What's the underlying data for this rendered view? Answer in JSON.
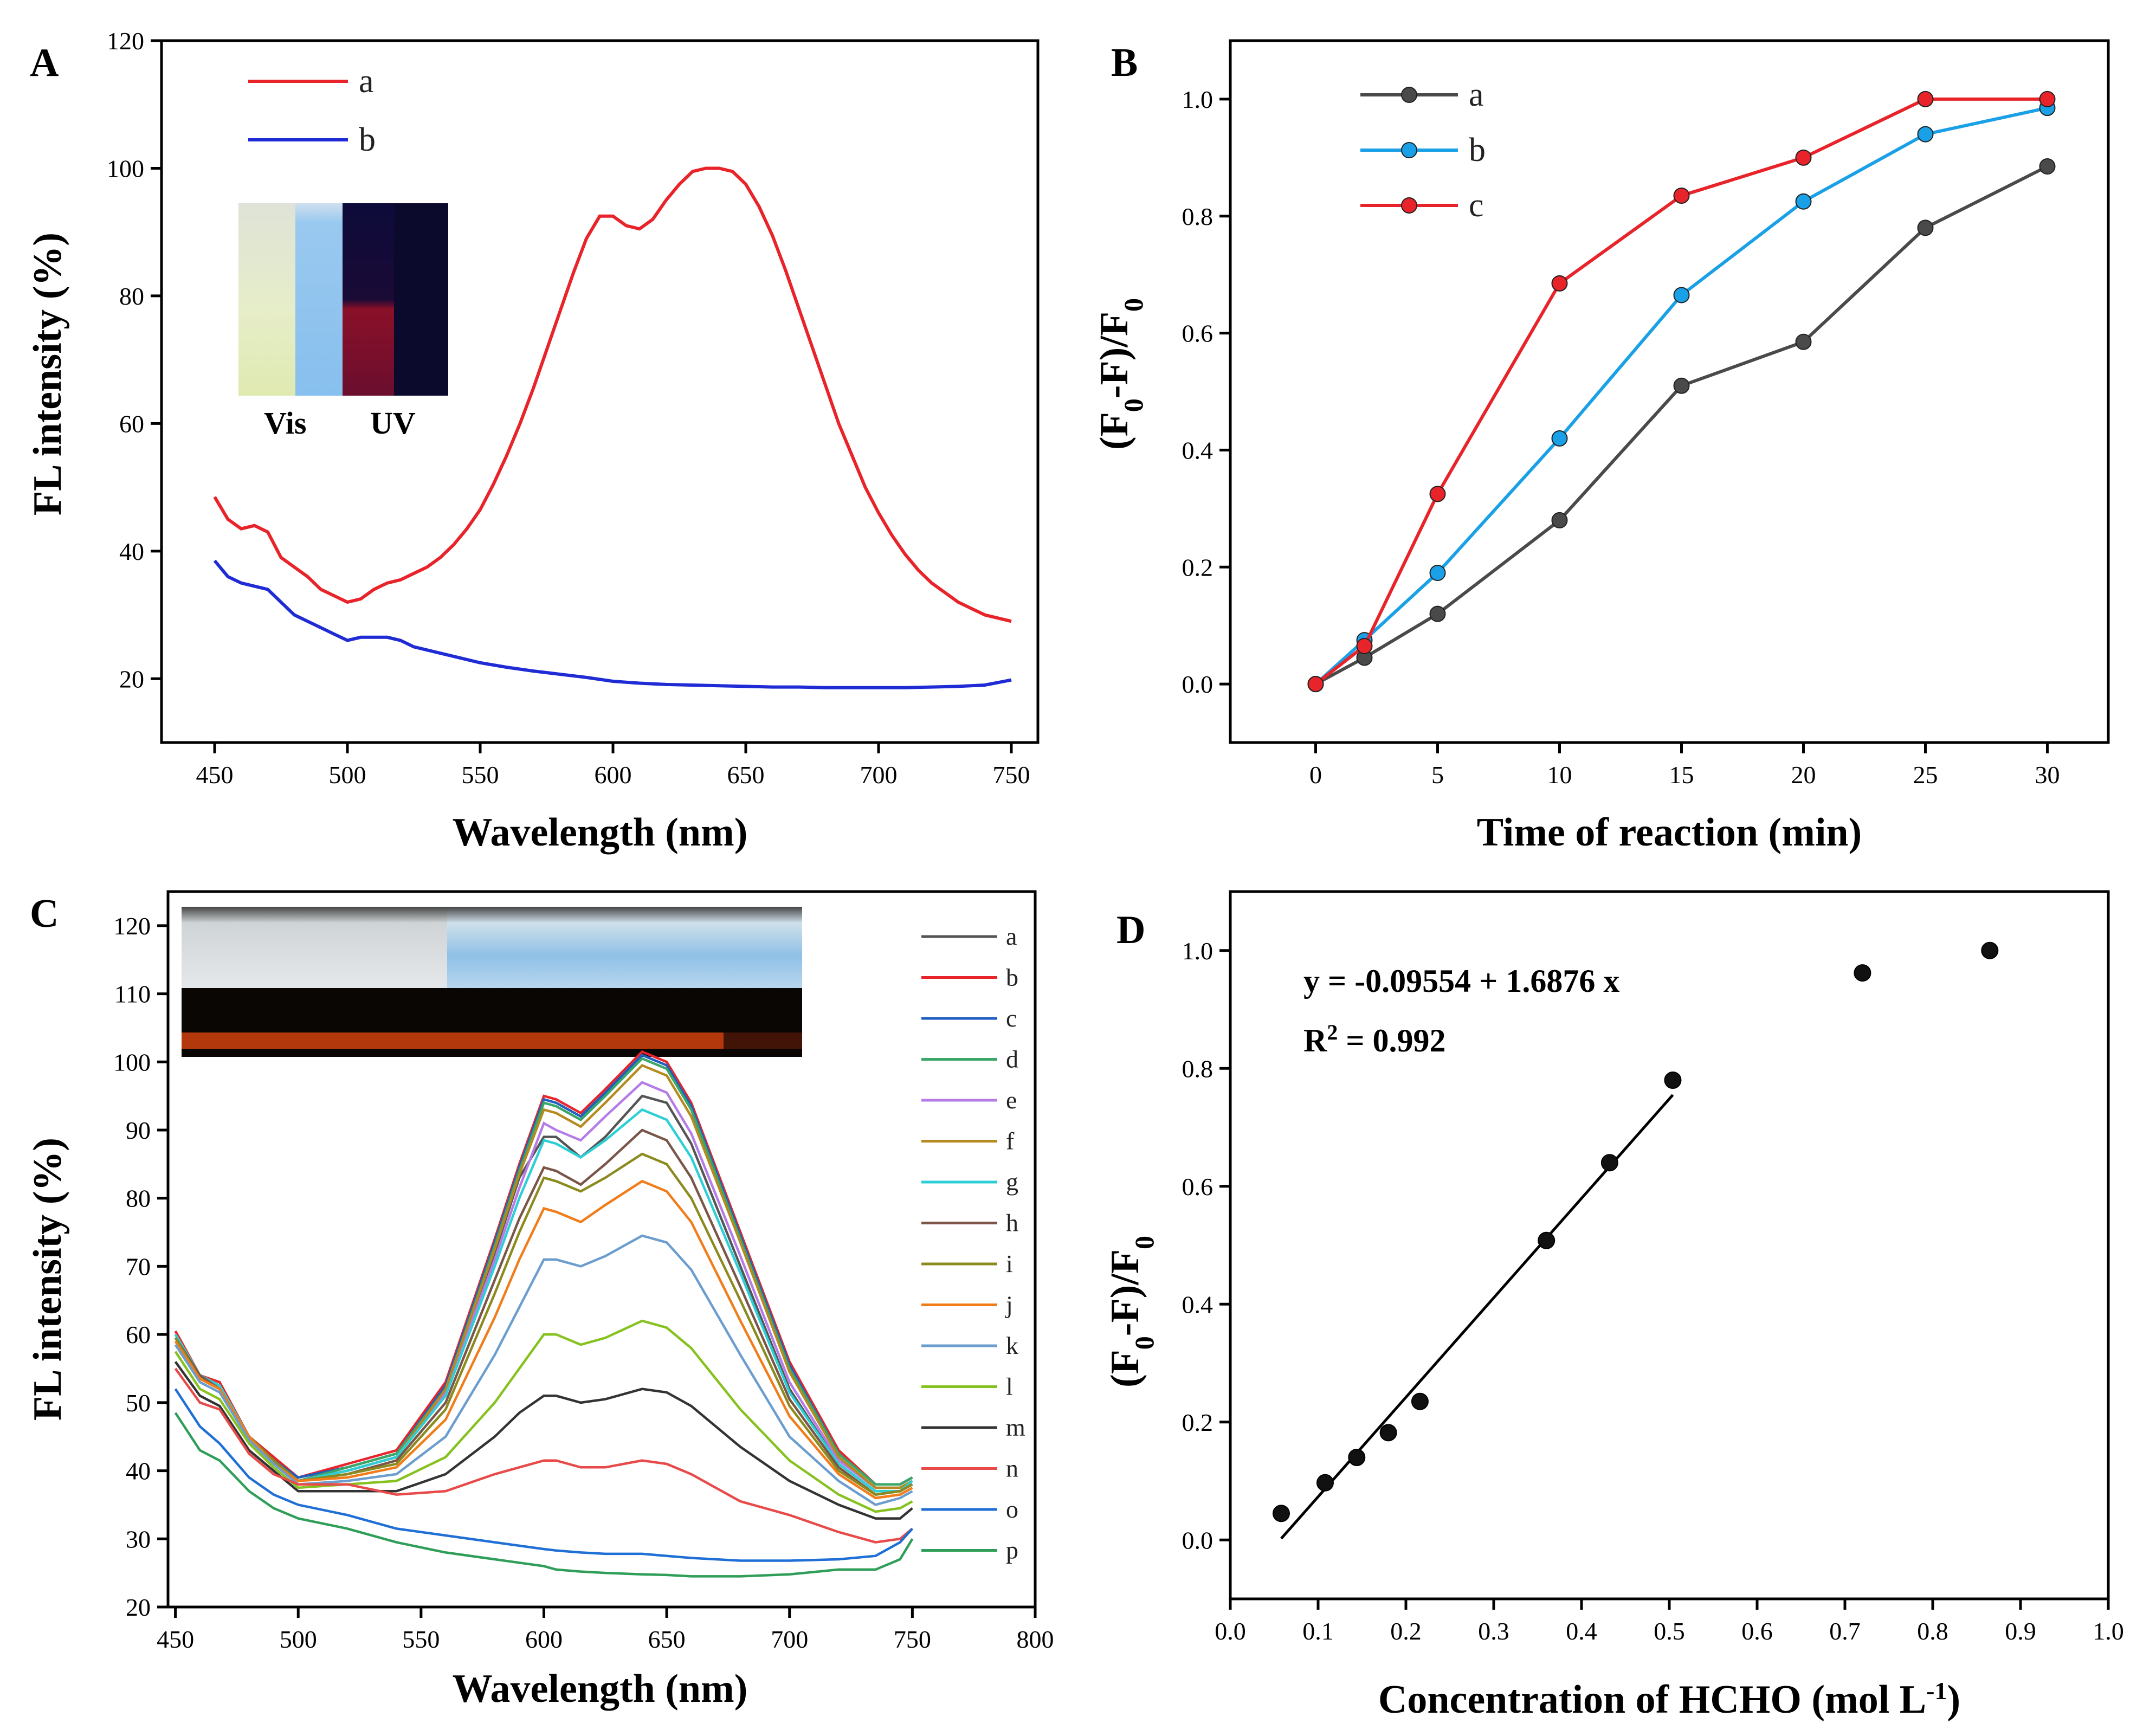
{
  "panels": {
    "A": {
      "letter": "A"
    },
    "B": {
      "letter": "B"
    },
    "C": {
      "letter": "C"
    },
    "D": {
      "letter": "D"
    }
  },
  "inset_A": {
    "vis_label": "Vis",
    "uv_label": "UV"
  },
  "annotation_D": {
    "equation": "y = -0.09554 + 1.6876 x",
    "r2_prefix": "R",
    "r2_sup": "2",
    "r2_value": " = 0.992"
  },
  "chart_data": [
    {
      "id": "A",
      "type": "line",
      "xlabel": "Wavelength (nm)",
      "ylabel": "FL intensity (%)",
      "xlim": [
        430,
        760
      ],
      "ylim": [
        10,
        120
      ],
      "xticks": [
        450,
        500,
        550,
        600,
        650,
        700,
        750
      ],
      "yticks": [
        20,
        40,
        60,
        80,
        100,
        120
      ],
      "legend_position": "top-left",
      "series": [
        {
          "name": "a",
          "color": "#e8242a",
          "x": [
            450,
            455,
            460,
            465,
            470,
            475,
            480,
            485,
            490,
            495,
            500,
            505,
            510,
            515,
            520,
            525,
            530,
            535,
            540,
            545,
            550,
            555,
            560,
            565,
            570,
            575,
            580,
            585,
            590,
            595,
            600,
            605,
            610,
            615,
            620,
            625,
            630,
            635,
            640,
            645,
            650,
            655,
            660,
            665,
            670,
            675,
            680,
            685,
            690,
            695,
            700,
            705,
            710,
            715,
            720,
            725,
            730,
            735,
            740,
            745,
            750
          ],
          "y": [
            48.5,
            45,
            43.5,
            44,
            43,
            39,
            37.5,
            36,
            34,
            33,
            32,
            32.5,
            34,
            35,
            35.5,
            36.5,
            37.5,
            39,
            41,
            43.5,
            46.5,
            50.5,
            55,
            60,
            65.5,
            71.5,
            77.5,
            83.5,
            89,
            92.5,
            92.5,
            91,
            90.5,
            92,
            95,
            97.5,
            99.5,
            100,
            100,
            99.5,
            97.5,
            94,
            89.5,
            84,
            78,
            72,
            66,
            60,
            55,
            50,
            46,
            42.5,
            39.5,
            37,
            35,
            33.5,
            32,
            31,
            30,
            29.5,
            29
          ]
        },
        {
          "name": "b",
          "color": "#1f2bd4",
          "x": [
            450,
            455,
            460,
            465,
            470,
            475,
            480,
            485,
            490,
            495,
            500,
            505,
            510,
            515,
            520,
            525,
            530,
            540,
            550,
            560,
            570,
            580,
            590,
            600,
            610,
            620,
            630,
            640,
            650,
            660,
            670,
            680,
            690,
            700,
            710,
            720,
            730,
            740,
            750
          ],
          "y": [
            38.5,
            36,
            35,
            34.5,
            34,
            32,
            30,
            29,
            28,
            27,
            26,
            26.5,
            26.5,
            26.5,
            26,
            25,
            24.5,
            23.5,
            22.5,
            21.8,
            21.2,
            20.7,
            20.2,
            19.6,
            19.3,
            19.1,
            19,
            18.9,
            18.8,
            18.7,
            18.7,
            18.6,
            18.6,
            18.6,
            18.6,
            18.7,
            18.8,
            19,
            19.8
          ]
        }
      ]
    },
    {
      "id": "B",
      "type": "line",
      "xlabel": "Time of reaction (min)",
      "ylabel": "(F0-F)/F0",
      "xlim": [
        -3.5,
        32.5
      ],
      "ylim": [
        -0.1,
        1.1
      ],
      "xticks": [
        0,
        5,
        10,
        15,
        20,
        25,
        30
      ],
      "yticks": [
        0.0,
        0.2,
        0.4,
        0.6,
        0.8,
        1.0
      ],
      "legend_position": "top-left",
      "series": [
        {
          "name": "a",
          "color": "#4a4a4a",
          "x": [
            0,
            2,
            5,
            10,
            15,
            20,
            25,
            30
          ],
          "y": [
            0,
            0.045,
            0.12,
            0.28,
            0.51,
            0.585,
            0.78,
            0.885
          ]
        },
        {
          "name": "b",
          "color": "#1aa0e6",
          "x": [
            0,
            2,
            5,
            10,
            15,
            20,
            25,
            30
          ],
          "y": [
            0,
            0.075,
            0.19,
            0.42,
            0.665,
            0.825,
            0.94,
            0.985
          ]
        },
        {
          "name": "c",
          "color": "#e8242a",
          "x": [
            0,
            2,
            5,
            10,
            15,
            20,
            25,
            30
          ],
          "y": [
            0,
            0.065,
            0.325,
            0.685,
            0.835,
            0.9,
            1.0,
            1.0
          ]
        }
      ]
    },
    {
      "id": "C",
      "type": "line",
      "xlabel": "Wavelength (nm)",
      "ylabel": "FL intensity (%)",
      "xlim": [
        447,
        800
      ],
      "ylim": [
        20,
        125
      ],
      "xticks": [
        450,
        500,
        550,
        600,
        650,
        700,
        750,
        800
      ],
      "yticks": [
        20,
        30,
        40,
        50,
        60,
        70,
        80,
        90,
        100,
        110,
        120
      ],
      "legend_position": "right",
      "peak_x": [
        450,
        460,
        468,
        480,
        490,
        500,
        520,
        540,
        560,
        580,
        590,
        600,
        605,
        615,
        625,
        640,
        650,
        660,
        680,
        700,
        720,
        735,
        745,
        750
      ],
      "series": [
        {
          "name": "a",
          "color": "#555555",
          "y": [
            60,
            54,
            52.5,
            45,
            42,
            38.5,
            40,
            42,
            52,
            72,
            83,
            89,
            89,
            86,
            89,
            95,
            94,
            88,
            70,
            52,
            41,
            37,
            37,
            38
          ]
        },
        {
          "name": "b",
          "color": "#e8242a",
          "y": [
            60.5,
            54,
            53,
            45,
            42,
            39,
            41,
            43,
            53,
            74,
            85,
            95,
            94.5,
            92.5,
            96,
            101.5,
            100,
            94,
            75,
            56,
            43,
            38,
            38,
            39
          ]
        },
        {
          "name": "c",
          "color": "#1f5fbf",
          "y": [
            60,
            54,
            52.5,
            45,
            41.5,
            39,
            40.5,
            42.5,
            52.5,
            73.5,
            84.5,
            94.5,
            94,
            92,
            95.5,
            101,
            99.5,
            93.5,
            74.5,
            55.5,
            42.5,
            38,
            38,
            39
          ]
        },
        {
          "name": "d",
          "color": "#3aa667",
          "y": [
            60,
            54,
            52.5,
            45,
            41.5,
            38.5,
            40.5,
            42.5,
            52,
            73,
            84,
            94,
            93.5,
            91.5,
            95,
            100.5,
            99,
            93,
            74,
            55,
            42.5,
            38,
            38,
            39
          ]
        },
        {
          "name": "e",
          "color": "#b57ce8",
          "y": [
            60,
            54,
            52.5,
            45,
            41.5,
            38.5,
            40,
            42,
            51.5,
            71,
            81.5,
            91,
            90,
            88.5,
            92,
            97,
            95.5,
            89.5,
            71.5,
            53,
            41.5,
            37.5,
            37.5,
            38.5
          ]
        },
        {
          "name": "f",
          "color": "#b58a1e",
          "y": [
            60,
            54,
            52.5,
            45,
            41.5,
            38.5,
            40,
            42,
            52,
            72.5,
            83.5,
            93,
            92.5,
            90.5,
            94,
            99.5,
            98,
            92,
            73.5,
            54.5,
            42,
            37.5,
            37.5,
            38.5
          ]
        },
        {
          "name": "g",
          "color": "#2ccfd6",
          "y": [
            60,
            54,
            52.5,
            45,
            41.5,
            38.5,
            40,
            42,
            51,
            70,
            80,
            88.5,
            88,
            86,
            88.5,
            93,
            91.5,
            86,
            69,
            51.5,
            41,
            37,
            37,
            38.5
          ]
        },
        {
          "name": "h",
          "color": "#7a5548",
          "y": [
            59.5,
            54,
            52,
            45,
            41.5,
            38.5,
            39.5,
            41.5,
            50,
            68,
            77,
            84.5,
            84,
            82,
            85,
            90,
            88.5,
            83,
            67,
            50.5,
            40.5,
            36.5,
            37,
            38
          ]
        },
        {
          "name": "i",
          "color": "#8a8a1e",
          "y": [
            59.5,
            53.5,
            52,
            45,
            41.5,
            38.5,
            39.5,
            41,
            49,
            66,
            75,
            83,
            82.5,
            81,
            83,
            86.5,
            85,
            80,
            65,
            49.5,
            40,
            36.5,
            37,
            38
          ]
        },
        {
          "name": "j",
          "color": "#f07c1a",
          "y": [
            59,
            53.5,
            52,
            45,
            41,
            38.5,
            39,
            40.5,
            47.5,
            62.5,
            71,
            78.5,
            78,
            76.5,
            79,
            82.5,
            81,
            76.5,
            62,
            48,
            39.5,
            36,
            36.5,
            37.5
          ]
        },
        {
          "name": "k",
          "color": "#6b9ecf",
          "y": [
            58.5,
            53,
            51.5,
            44.5,
            41,
            38,
            38.5,
            39.5,
            45,
            57,
            64,
            71,
            71,
            70,
            71.5,
            74.5,
            73.5,
            69.5,
            57,
            45,
            38.5,
            35,
            36,
            37
          ]
        },
        {
          "name": "l",
          "color": "#86c21f",
          "y": [
            57.5,
            52,
            50.5,
            44,
            40.5,
            37.5,
            38,
            38.5,
            42,
            50,
            55,
            60,
            60,
            58.5,
            59.5,
            62,
            61,
            58,
            49,
            41.5,
            36.5,
            34,
            34.5,
            35.5
          ]
        },
        {
          "name": "m",
          "color": "#333333",
          "y": [
            56,
            51,
            49.5,
            43,
            40,
            37,
            37,
            37,
            39.5,
            45,
            48.5,
            51,
            51,
            50,
            50.5,
            52,
            51.5,
            49.5,
            43.5,
            38.5,
            35,
            33,
            33,
            34.5
          ]
        },
        {
          "name": "n",
          "color": "#e84a4a",
          "y": [
            55,
            50,
            49,
            42.5,
            39.5,
            38,
            38,
            36.5,
            37,
            39.5,
            40.5,
            41.5,
            41.5,
            40.5,
            40.5,
            41.5,
            41,
            39.5,
            35.5,
            33.5,
            31,
            29.5,
            30,
            31.5
          ]
        },
        {
          "name": "o",
          "color": "#1f6fd6",
          "y": [
            52,
            46.5,
            44,
            39,
            36.5,
            35,
            33.5,
            31.5,
            30.5,
            29.5,
            29,
            28.5,
            28.3,
            28,
            27.8,
            27.8,
            27.5,
            27.2,
            26.8,
            26.8,
            27,
            27.5,
            29.5,
            31.5
          ]
        },
        {
          "name": "p",
          "color": "#2e9e58",
          "y": [
            48.5,
            43,
            41.5,
            37,
            34.5,
            33,
            31.5,
            29.5,
            28,
            27,
            26.5,
            26,
            25.5,
            25.2,
            25,
            24.8,
            24.7,
            24.5,
            24.5,
            24.8,
            25.5,
            25.5,
            27,
            30
          ]
        }
      ]
    },
    {
      "id": "D",
      "type": "scatter",
      "xlabel": "Concentration of HCHO (mol L-1)",
      "ylabel": "(F0-F)/F0",
      "xlim": [
        0.0,
        1.0
      ],
      "ylim": [
        -0.1,
        1.1
      ],
      "xticks": [
        0.0,
        0.1,
        0.2,
        0.3,
        0.4,
        0.5,
        0.6,
        0.7,
        0.8,
        0.9,
        1.0
      ],
      "yticks": [
        0.0,
        0.2,
        0.4,
        0.6,
        0.8,
        1.0
      ],
      "points": {
        "x": [
          0.058,
          0.108,
          0.144,
          0.18,
          0.216,
          0.36,
          0.432,
          0.504,
          0.72,
          0.865
        ],
        "y": [
          0.045,
          0.097,
          0.14,
          0.182,
          0.235,
          0.508,
          0.64,
          0.78,
          0.962,
          1.0
        ]
      },
      "fit": {
        "intercept": -0.09554,
        "slope": 1.6876,
        "x_range": [
          0.058,
          0.504
        ],
        "r2": 0.992
      }
    }
  ]
}
